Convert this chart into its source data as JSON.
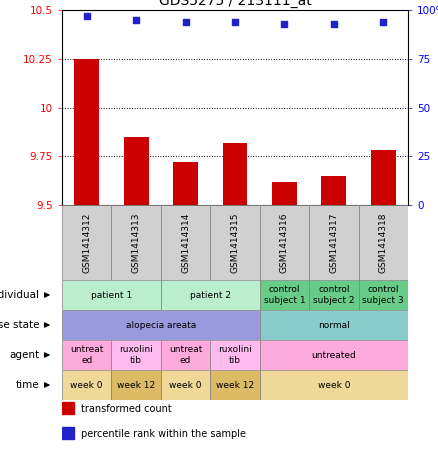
{
  "title": "GDS5275 / 213111_at",
  "samples": [
    "GSM1414312",
    "GSM1414313",
    "GSM1414314",
    "GSM1414315",
    "GSM1414316",
    "GSM1414317",
    "GSM1414318"
  ],
  "transformed_count": [
    10.25,
    9.85,
    9.72,
    9.82,
    9.62,
    9.65,
    9.78
  ],
  "percentile_rank": [
    97,
    95,
    94,
    94,
    93,
    93,
    94
  ],
  "ylim_left": [
    9.5,
    10.5
  ],
  "ylim_right": [
    0,
    100
  ],
  "yticks_left": [
    9.5,
    9.75,
    10.0,
    10.25,
    10.5
  ],
  "yticks_right": [
    0,
    25,
    50,
    75,
    100
  ],
  "ytick_labels_left": [
    "9.5",
    "9.75",
    "10",
    "10.25",
    "10.5"
  ],
  "ytick_labels_right": [
    "0",
    "25",
    "50",
    "75",
    "100%"
  ],
  "hlines": [
    9.75,
    10.0,
    10.25
  ],
  "bar_color": "#cc0000",
  "dot_color": "#2222cc",
  "bar_width": 0.5,
  "annotation_rows": [
    {
      "label": "individual",
      "groups": [
        {
          "text": "patient 1",
          "cols": [
            0,
            1
          ],
          "color": "#bbeecc"
        },
        {
          "text": "patient 2",
          "cols": [
            2,
            3
          ],
          "color": "#bbeecc"
        },
        {
          "text": "control\nsubject 1",
          "cols": [
            4
          ],
          "color": "#66cc88"
        },
        {
          "text": "control\nsubject 2",
          "cols": [
            5
          ],
          "color": "#66cc88"
        },
        {
          "text": "control\nsubject 3",
          "cols": [
            6
          ],
          "color": "#66cc88"
        }
      ]
    },
    {
      "label": "disease state",
      "groups": [
        {
          "text": "alopecia areata",
          "cols": [
            0,
            1,
            2,
            3
          ],
          "color": "#9999dd"
        },
        {
          "text": "normal",
          "cols": [
            4,
            5,
            6
          ],
          "color": "#88cccc"
        }
      ]
    },
    {
      "label": "agent",
      "groups": [
        {
          "text": "untreat\ned",
          "cols": [
            0
          ],
          "color": "#ffaadd"
        },
        {
          "text": "ruxolini\ntib",
          "cols": [
            1
          ],
          "color": "#ffbbee"
        },
        {
          "text": "untreat\ned",
          "cols": [
            2
          ],
          "color": "#ffaadd"
        },
        {
          "text": "ruxolini\ntib",
          "cols": [
            3
          ],
          "color": "#ffbbee"
        },
        {
          "text": "untreated",
          "cols": [
            4,
            5,
            6
          ],
          "color": "#ffaadd"
        }
      ]
    },
    {
      "label": "time",
      "groups": [
        {
          "text": "week 0",
          "cols": [
            0
          ],
          "color": "#f0d898"
        },
        {
          "text": "week 12",
          "cols": [
            1
          ],
          "color": "#ddbb66"
        },
        {
          "text": "week 0",
          "cols": [
            2
          ],
          "color": "#f0d898"
        },
        {
          "text": "week 12",
          "cols": [
            3
          ],
          "color": "#ddbb66"
        },
        {
          "text": "week 0",
          "cols": [
            4,
            5,
            6
          ],
          "color": "#f0d898"
        }
      ]
    }
  ],
  "legend": [
    {
      "color": "#cc0000",
      "label": "transformed count"
    },
    {
      "color": "#2222cc",
      "label": "percentile rank within the sample"
    }
  ]
}
